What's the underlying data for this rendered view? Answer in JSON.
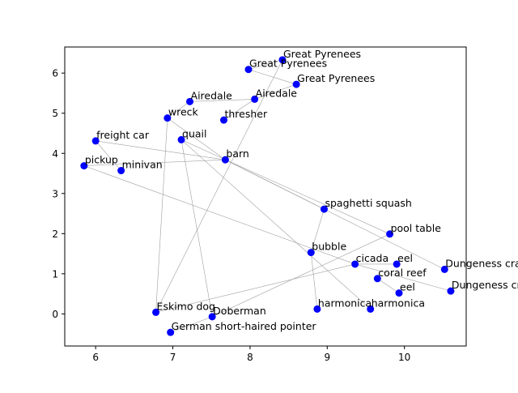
{
  "chart_data": {
    "type": "scatter",
    "title": "",
    "xlabel": "",
    "ylabel": "",
    "xlim": [
      5.6,
      10.8
    ],
    "ylim": [
      -0.8,
      6.65
    ],
    "xticks": [
      6,
      7,
      8,
      9,
      10
    ],
    "xtick_labels": [
      "6",
      "7",
      "8",
      "9",
      "10"
    ],
    "yticks": [
      0,
      1,
      2,
      3,
      4,
      5,
      6
    ],
    "ytick_labels": [
      "0",
      "1",
      "2",
      "3",
      "4",
      "5",
      "6"
    ],
    "grid": false,
    "point_color": "#0000ff",
    "edge_color": "#a0a0a0",
    "points": [
      {
        "label": "Great Pyrenees",
        "x": 8.42,
        "y": 6.33
      },
      {
        "label": "Great Pyrenees",
        "x": 7.98,
        "y": 6.09
      },
      {
        "label": "Great Pyrenees",
        "x": 8.6,
        "y": 5.72
      },
      {
        "label": "Airedale",
        "x": 8.06,
        "y": 5.35
      },
      {
        "label": "Airedale",
        "x": 7.22,
        "y": 5.29
      },
      {
        "label": "wreck",
        "x": 6.93,
        "y": 4.88
      },
      {
        "label": "thresher",
        "x": 7.66,
        "y": 4.83
      },
      {
        "label": "quail",
        "x": 7.11,
        "y": 4.34
      },
      {
        "label": "freight car",
        "x": 6.0,
        "y": 4.31
      },
      {
        "label": "barn",
        "x": 7.68,
        "y": 3.84
      },
      {
        "label": "pickup",
        "x": 5.85,
        "y": 3.69
      },
      {
        "label": "minivan",
        "x": 6.33,
        "y": 3.57
      },
      {
        "label": "spaghetti squash",
        "x": 8.96,
        "y": 2.61
      },
      {
        "label": "pool table",
        "x": 9.81,
        "y": 1.99
      },
      {
        "label": "bubble",
        "x": 8.79,
        "y": 1.53
      },
      {
        "label": "cicada",
        "x": 9.36,
        "y": 1.24
      },
      {
        "label": "eel",
        "x": 9.9,
        "y": 1.24
      },
      {
        "label": "Dungeness crab",
        "x": 10.52,
        "y": 1.11
      },
      {
        "label": "coral reef",
        "x": 9.65,
        "y": 0.88
      },
      {
        "label": "Dungeness crab",
        "x": 10.6,
        "y": 0.57
      },
      {
        "label": "eel",
        "x": 9.93,
        "y": 0.52
      },
      {
        "label": "harmonica",
        "x": 8.87,
        "y": 0.12
      },
      {
        "label": "harmonica",
        "x": 9.56,
        "y": 0.12
      },
      {
        "label": "Eskimo dog",
        "x": 6.78,
        "y": 0.04
      },
      {
        "label": "Doberman",
        "x": 7.51,
        "y": -0.07
      },
      {
        "label": "German short-haired pointer",
        "x": 6.97,
        "y": -0.46
      }
    ],
    "edges": [
      [
        0,
        1
      ],
      [
        0,
        23
      ],
      [
        1,
        2
      ],
      [
        2,
        3
      ],
      [
        3,
        4
      ],
      [
        3,
        6
      ],
      [
        5,
        4
      ],
      [
        5,
        9
      ],
      [
        5,
        23
      ],
      [
        7,
        24
      ],
      [
        7,
        13
      ],
      [
        7,
        22
      ],
      [
        8,
        9
      ],
      [
        8,
        11
      ],
      [
        9,
        10
      ],
      [
        9,
        12
      ],
      [
        9,
        17
      ],
      [
        10,
        15
      ],
      [
        14,
        21
      ],
      [
        15,
        16
      ],
      [
        15,
        19
      ],
      [
        15,
        23
      ],
      [
        18,
        20
      ],
      [
        14,
        12
      ],
      [
        24,
        25
      ],
      [
        24,
        13
      ]
    ]
  }
}
